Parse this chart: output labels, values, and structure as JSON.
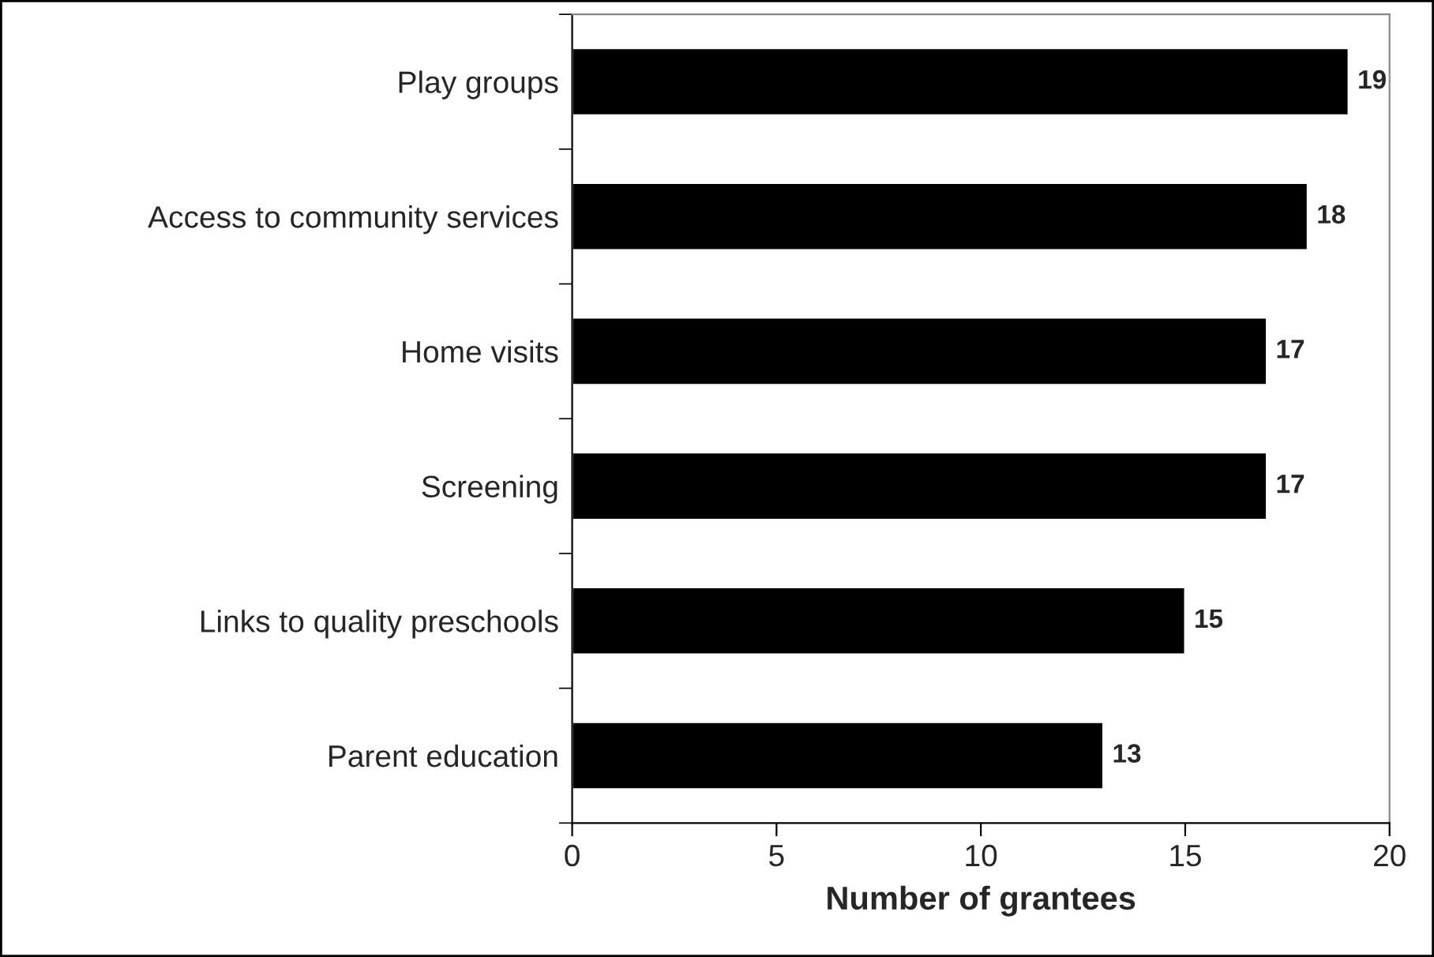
{
  "chart_data": {
    "type": "bar",
    "orientation": "horizontal",
    "xlabel": "Number of grantees",
    "categories": [
      "Play groups",
      "Access to community services",
      "Home visits",
      "Screening",
      "Links to quality preschools",
      "Parent education"
    ],
    "values": [
      19,
      18,
      17,
      17,
      15,
      13
    ],
    "color": "#000000",
    "xlim": [
      0,
      20
    ],
    "xticks": [
      0,
      5,
      10,
      15,
      20
    ],
    "grid": false,
    "legend": false,
    "data_labels": true
  }
}
